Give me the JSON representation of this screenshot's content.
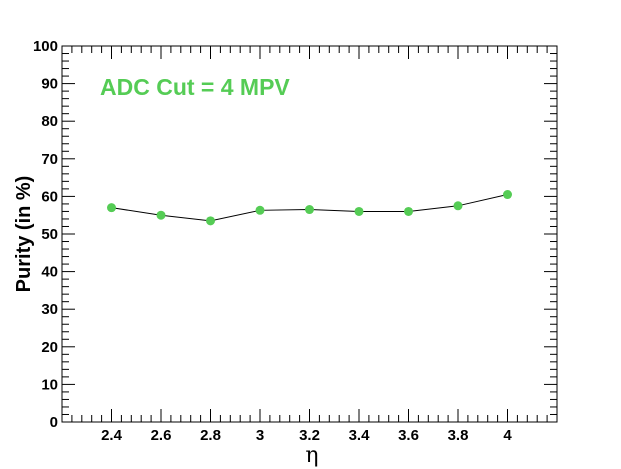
{
  "chart_data": {
    "type": "line",
    "title": "",
    "annotation": "ADC Cut = 4 MPV",
    "xlabel": "η",
    "ylabel": "Purity (in %)",
    "xlim": [
      2.2,
      4.2
    ],
    "ylim": [
      0,
      100
    ],
    "x_ticks": [
      "2.4",
      "2.6",
      "2.8",
      "3",
      "3.2",
      "3.4",
      "3.6",
      "3.8",
      "4"
    ],
    "y_ticks": [
      "0",
      "10",
      "20",
      "30",
      "40",
      "50",
      "60",
      "70",
      "80",
      "90",
      "100"
    ],
    "grid": false,
    "series": [
      {
        "x": [
          2.4,
          2.6,
          2.8,
          3.0,
          3.2,
          3.4,
          3.6,
          3.8,
          4.0
        ],
        "y": [
          57.0,
          55.0,
          53.5,
          56.3,
          56.5,
          56.0,
          56.0,
          57.5,
          60.5
        ],
        "marker_color": "#55cc55",
        "line_color": "#000000"
      }
    ]
  }
}
